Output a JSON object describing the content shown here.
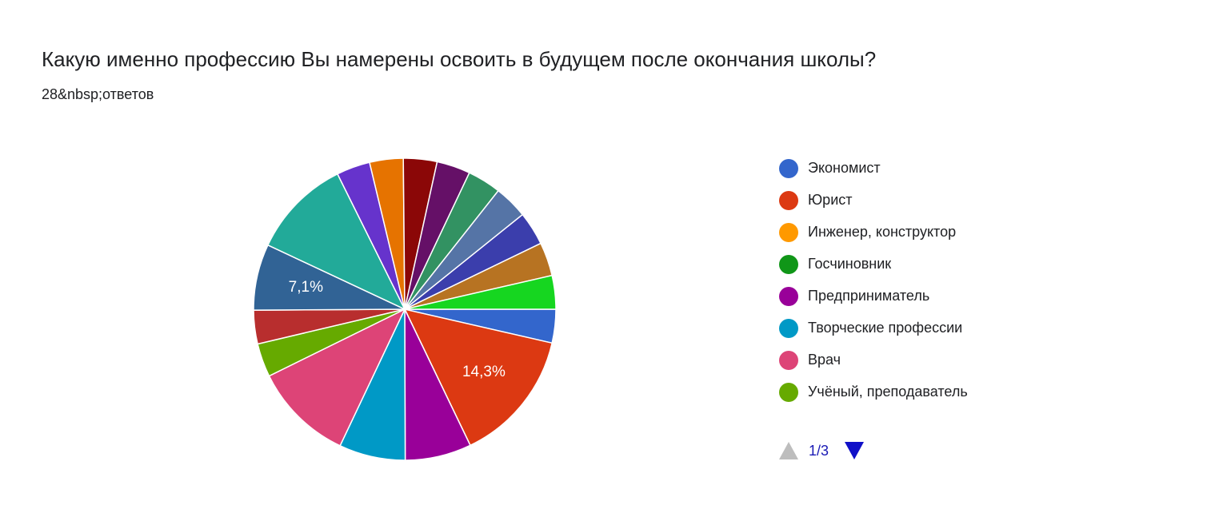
{
  "chart_data": {
    "type": "pie",
    "title": "Какую именно профессию Вы намерены освоить в будущем после окончания школы?",
    "subtitle": "28&nbsp;ответов",
    "categories": [
      "Экономист",
      "Юрист",
      "Инженер, конструктор",
      "Госчиновник",
      "Предприниматель",
      "Творческие профессии",
      "Врач",
      "Учёный, преподаватель",
      null,
      null,
      null,
      null,
      null,
      null,
      null,
      null,
      null,
      null,
      null,
      null,
      null,
      null
    ],
    "values": [
      3.6,
      14.3,
      0,
      0,
      7.1,
      7.1,
      10.7,
      3.6,
      3.6,
      7.1,
      0,
      10.7,
      0,
      3.6,
      3.6,
      3.6,
      3.6,
      3.6,
      3.6,
      3.6,
      3.6,
      3.6
    ],
    "value_labels": [
      null,
      "14,3%",
      null,
      null,
      null,
      null,
      null,
      null,
      null,
      "7,1%",
      null,
      null,
      null,
      null,
      null,
      null,
      null,
      null,
      null,
      null,
      null,
      null
    ],
    "colors": [
      "#3366cc",
      "#dc3912",
      "#ff9900",
      "#109618",
      "#990099",
      "#0099c6",
      "#dd4477",
      "#66aa00",
      "#b82e2e",
      "#316395",
      "#994499",
      "#22aa99",
      "#aaaa11",
      "#6633cc",
      "#e67300",
      "#8b0707",
      "#651067",
      "#329262",
      "#5574a6",
      "#3b3eac",
      "#b77322",
      "#16d620"
    ],
    "legend_page": "1/3"
  }
}
